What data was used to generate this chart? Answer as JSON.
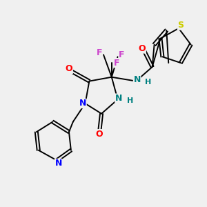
{
  "bg_color": "#f0f0f0",
  "bond_color": "#000000",
  "atom_colors": {
    "O": "#ff0000",
    "N": "#0000ff",
    "NH": "#008080",
    "F": "#cc44cc",
    "S": "#cccc00",
    "C": "#000000"
  },
  "figsize": [
    3.0,
    3.0
  ],
  "dpi": 100
}
